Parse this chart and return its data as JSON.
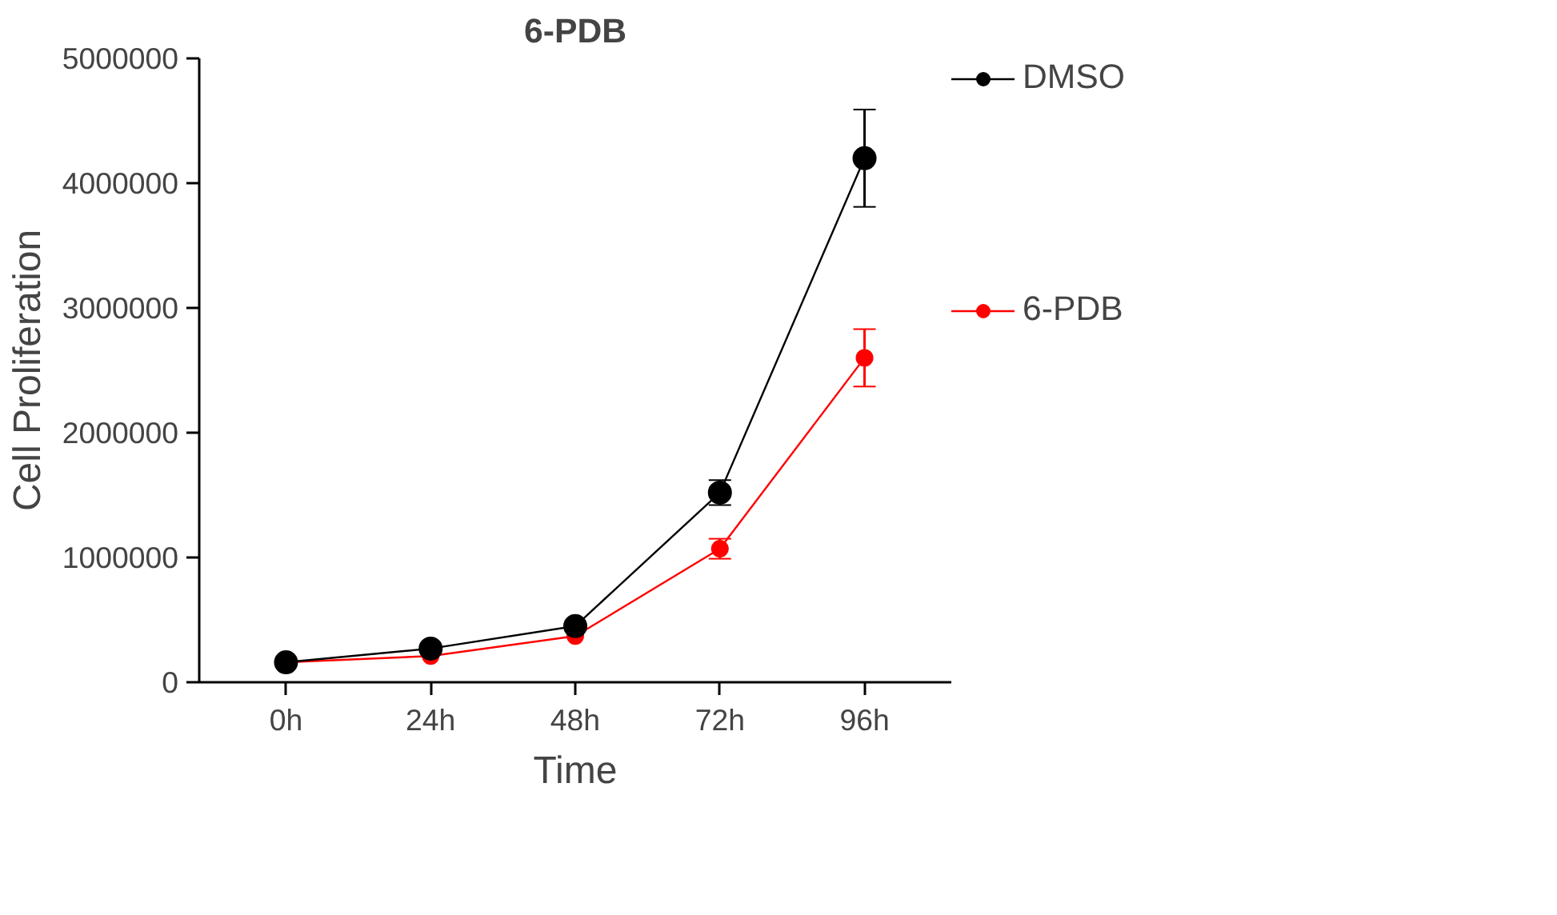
{
  "chart_data": {
    "type": "line",
    "title": "6-PDB",
    "xlabel": "Time",
    "ylabel": "Cell Proliferation",
    "categories": [
      "0h",
      "24h",
      "48h",
      "72h",
      "96h"
    ],
    "series": [
      {
        "name": "DMSO",
        "color": "#000000",
        "values": [
          160000,
          270000,
          450000,
          1520000,
          4200000
        ],
        "errors": [
          null,
          null,
          null,
          100000,
          390000
        ]
      },
      {
        "name": "6-PDB",
        "color": "#ff0000",
        "values": [
          160000,
          210000,
          370000,
          1070000,
          2600000
        ],
        "errors": [
          null,
          null,
          null,
          80000,
          230000
        ]
      }
    ],
    "ylim": [
      0,
      5000000
    ],
    "yticks": [
      0,
      1000000,
      2000000,
      3000000,
      4000000,
      5000000
    ],
    "grid": false,
    "legend": "right",
    "marker": "circle",
    "line_style": "solid"
  }
}
